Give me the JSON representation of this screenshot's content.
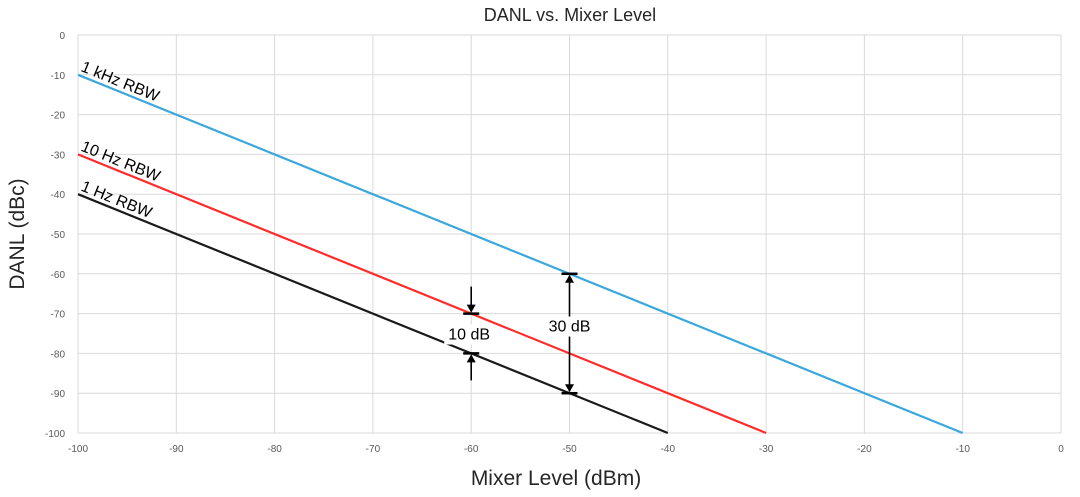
{
  "chart_data": {
    "type": "line",
    "title": "DANL vs. Mixer Level",
    "xlabel": "Mixer Level (dBm)",
    "ylabel": "DANL (dBc)",
    "xlim": [
      -100,
      0
    ],
    "ylim": [
      -100,
      0
    ],
    "xticks": [
      -100,
      -90,
      -80,
      -70,
      -60,
      -50,
      -40,
      -30,
      -20,
      -10,
      0
    ],
    "yticks": [
      0,
      -10,
      -20,
      -30,
      -40,
      -50,
      -60,
      -70,
      -80,
      -90,
      -100
    ],
    "grid": true,
    "legend": "none",
    "series": [
      {
        "name": "1 kHz RBW",
        "color": "#3aa8dc",
        "x": [
          -100,
          -10
        ],
        "y": [
          -10,
          -100
        ]
      },
      {
        "name": "10 Hz RBW",
        "color": "#ff2b2b",
        "x": [
          -100,
          -30
        ],
        "y": [
          -30,
          -100
        ]
      },
      {
        "name": "1 Hz RBW",
        "color": "#1a1a1a",
        "x": [
          -100,
          -40
        ],
        "y": [
          -40,
          -100
        ]
      }
    ],
    "annotations": [
      {
        "label": "10 dB",
        "x": -60,
        "y_top": -70,
        "y_bottom": -80,
        "style": "inward-arrows"
      },
      {
        "label": "30 dB",
        "x": -50,
        "y_top": -60,
        "y_bottom": -90,
        "style": "double-arrow"
      }
    ]
  }
}
